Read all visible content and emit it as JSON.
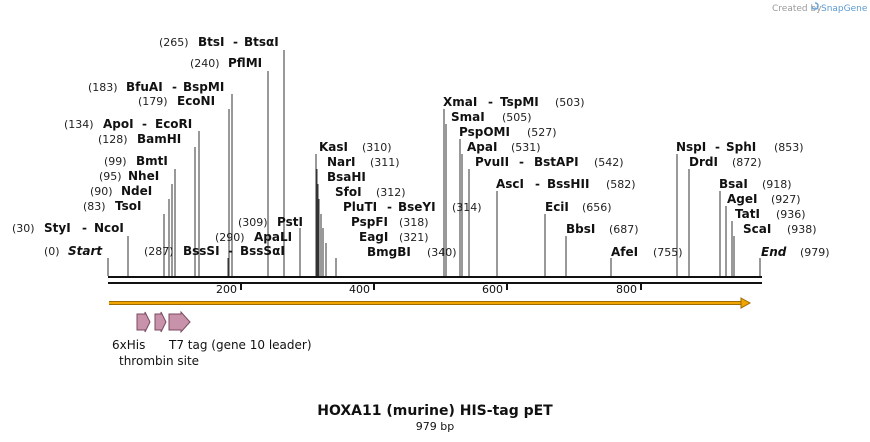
{
  "credit": "Created by",
  "brand": "SnapGene",
  "title": "HOXA11 (murine) HIS-tag pET",
  "length_label": "979 bp",
  "ticks": [
    "200",
    "400",
    "600",
    "800"
  ],
  "colors": {
    "arrow": "#f0a500",
    "feature": "#c893aa",
    "line": "#111111"
  },
  "features": [
    {
      "label": "6xHis"
    },
    {
      "label": "thrombin site"
    },
    {
      "label": "T7 tag (gene 10 leader)"
    }
  ],
  "sites": [
    {
      "pos": "(265)",
      "name": "BtsI",
      "sep": "-",
      "name2": "BtsαI"
    },
    {
      "pos": "(240)",
      "name": "PflMI"
    },
    {
      "pos": "(183)",
      "name": "BfuAI",
      "sep": "-",
      "name2": "BspMI"
    },
    {
      "pos": "(179)",
      "name": "EcoNI"
    },
    {
      "pos": "(134)",
      "name": "ApoI",
      "sep": "-",
      "name2": "EcoRI"
    },
    {
      "pos": "(128)",
      "name": "BamHI"
    },
    {
      "pos": "(99)",
      "name": "BmtI"
    },
    {
      "pos": "(95)",
      "name": "NheI"
    },
    {
      "pos": "(90)",
      "name": "NdeI"
    },
    {
      "pos": "(83)",
      "name": "TsoI"
    },
    {
      "pos": "(30)",
      "name": "StyI",
      "sep": "-",
      "name2": "NcoI"
    },
    {
      "pos": "(0)",
      "name": "Start"
    },
    {
      "pos": "(287)",
      "name": "BssSI",
      "sep": "-",
      "name2": "BssSαI"
    },
    {
      "pos": "(290)",
      "name": "ApaLI"
    },
    {
      "pos": "(309)",
      "name": "PstI"
    },
    {
      "pos": "(310)",
      "name": "KasI"
    },
    {
      "pos": "(311)",
      "name": "NarI"
    },
    {
      "name": "BsaHI"
    },
    {
      "pos": "(312)",
      "name": "SfoI"
    },
    {
      "pos": "(314)",
      "name": "PluTI",
      "sep": "-",
      "name2": "BseYI"
    },
    {
      "pos": "(318)",
      "name": "PspFI"
    },
    {
      "pos": "(321)",
      "name": "EagI"
    },
    {
      "pos": "(340)",
      "name": "BmgBI"
    },
    {
      "pos": "(503)",
      "name": "XmaI",
      "sep": "-",
      "name2": "TspMI"
    },
    {
      "pos": "(505)",
      "name": "SmaI"
    },
    {
      "pos": "(527)",
      "name": "PspOMI"
    },
    {
      "pos": "(531)",
      "name": "ApaI"
    },
    {
      "pos": "(542)",
      "name": "PvuII",
      "sep": "-",
      "name2": "BstAPI"
    },
    {
      "pos": "(582)",
      "name": "AscI",
      "sep": "-",
      "name2": "BssHII"
    },
    {
      "pos": "(656)",
      "name": "EciI"
    },
    {
      "pos": "(687)",
      "name": "BbsI"
    },
    {
      "pos": "(755)",
      "name": "AfeI"
    },
    {
      "pos": "(853)",
      "name": "NspI",
      "sep": "-",
      "name2": "SphI"
    },
    {
      "pos": "(872)",
      "name": "DrdI"
    },
    {
      "pos": "(918)",
      "name": "BsaI"
    },
    {
      "pos": "(927)",
      "name": "AgeI"
    },
    {
      "pos": "(936)",
      "name": "TatI"
    },
    {
      "pos": "(938)",
      "name": "ScaI"
    },
    {
      "pos": "(979)",
      "name": "End"
    }
  ]
}
